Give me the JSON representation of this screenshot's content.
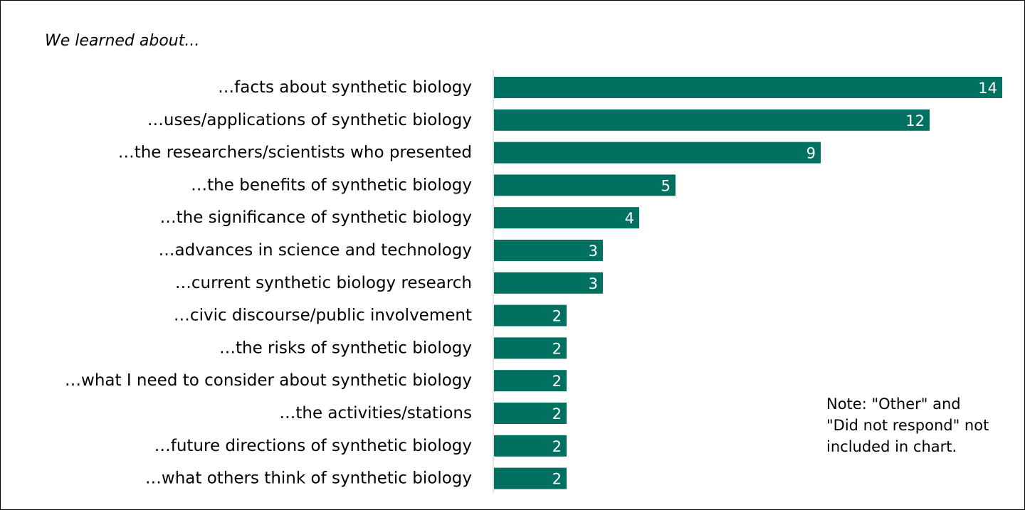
{
  "chart_data": {
    "type": "bar",
    "orientation": "horizontal",
    "title": "We learned about...",
    "categories": [
      "…facts about synthetic biology",
      "…uses/applications of synthetic biology",
      "…the researchers/scientists who presented",
      "…the benefits of synthetic biology",
      "…the significance of synthetic biology",
      "…advances in science and technology",
      "…current synthetic biology research",
      "…civic discourse/public involvement",
      "…the risks of synthetic biology",
      "…what I need to consider about synthetic biology",
      "…the activities/stations",
      "…future directions of synthetic biology",
      "…what others think of synthetic biology"
    ],
    "values": [
      14,
      12,
      9,
      5,
      4,
      3,
      3,
      2,
      2,
      2,
      2,
      2,
      2
    ],
    "xlim": [
      0,
      14
    ],
    "grid": false,
    "bar_color": "#007060",
    "data_labels": true
  },
  "note": "Note: \"Other\" and \"Did not respond\" not included in chart."
}
